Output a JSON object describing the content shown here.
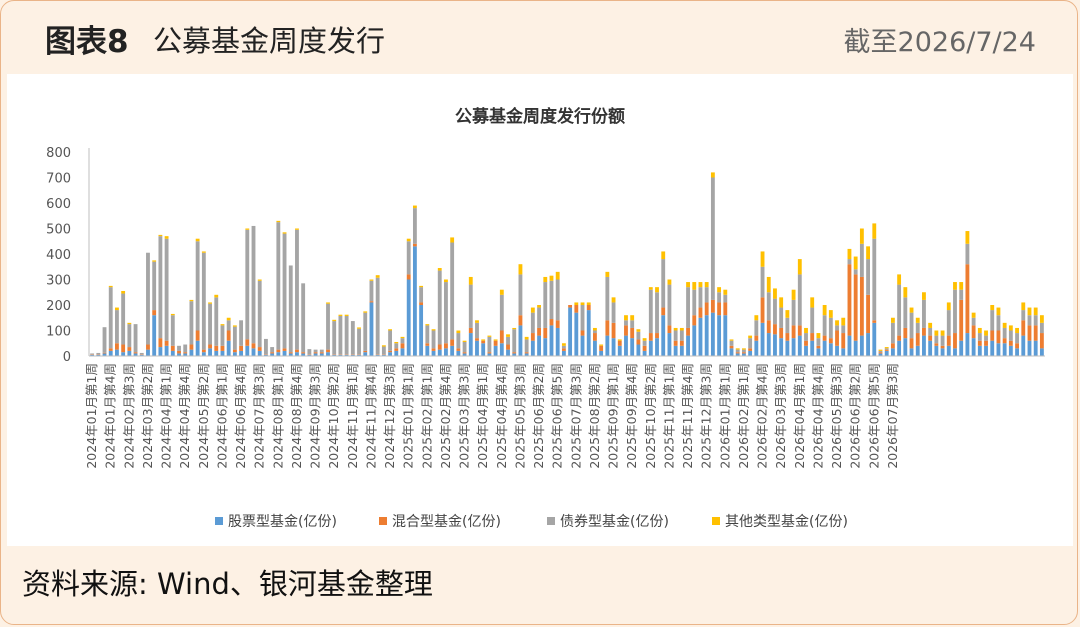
{
  "header": {
    "figure_label": "图表8",
    "figure_title": "公募基金周度发行",
    "date": "截至2026/7/24"
  },
  "source": "资料来源: Wind、银河基金整理",
  "colors": {
    "stock": "#5b9bd5",
    "mixed": "#ed7d31",
    "bond": "#a5a5a5",
    "other": "#ffc000"
  },
  "chart_data": {
    "type": "bar",
    "stacked": true,
    "title": "公募基金周度发行份额",
    "xlabel": "",
    "ylabel": "",
    "ylim": [
      0,
      800
    ],
    "yticks": [
      0,
      100,
      200,
      300,
      400,
      500,
      600,
      700,
      800
    ],
    "grid": false,
    "legend_position": "bottom",
    "x_tick_labels": [
      "2024年01月第1周",
      "2024年01月第4周",
      "2024年02月第3周",
      "2024年03月第2周",
      "2024年04月第1周",
      "2024年04月第4周",
      "2024年05月第2周",
      "2024年06月第1周",
      "2024年06月第4周",
      "2024年07月第3周",
      "2024年08月第1周",
      "2024年08月第4周",
      "2024年09月第3周",
      "2024年10月第2周",
      "2024年11月第1周",
      "2024年11月第4周",
      "2024年12月第3周",
      "2025年01月第1周",
      "2025年02月第1周",
      "2025年02月第4周",
      "2025年03月第3周",
      "2025年04月第1周",
      "2025年04月第4周",
      "2025年05月第3周",
      "2025年06月第2周",
      "2025年06月第5周",
      "2025年07月第3周",
      "2025年08月第2周",
      "2025年09月第1周",
      "2025年09月第4周",
      "2025年10月第2周",
      "2025年11月第1周",
      "2025年11月第4周",
      "2025年12月第3周",
      "2026年01月第1周",
      "2026年02月第1周",
      "2026年02月第4周",
      "2026年03月第3周",
      "2026年04月第1周",
      "2026年04月第4周",
      "2026年05月第3周",
      "2026年06月第2周",
      "2026年06月第5周",
      "2026年07月第3周"
    ],
    "x_tick_every": 3,
    "series": [
      {
        "name": "股票型基金(亿份)",
        "color_key": "stock",
        "values": [
          5,
          5,
          10,
          20,
          25,
          15,
          20,
          10,
          5,
          25,
          160,
          35,
          40,
          20,
          10,
          10,
          25,
          60,
          15,
          30,
          20,
          20,
          60,
          15,
          20,
          40,
          30,
          20,
          5,
          10,
          15,
          20,
          10,
          15,
          10,
          5,
          10,
          10,
          15,
          5,
          5,
          5,
          5,
          5,
          15,
          210,
          5,
          5,
          15,
          20,
          30,
          300,
          430,
          200,
          40,
          20,
          25,
          30,
          40,
          20,
          10,
          90,
          60,
          50,
          10,
          40,
          50,
          25,
          10,
          120,
          10,
          60,
          80,
          70,
          120,
          110,
          20,
          190,
          170,
          80,
          180,
          60,
          20,
          80,
          70,
          40,
          80,
          70,
          45,
          20,
          60,
          70,
          160,
          90,
          40,
          40,
          80,
          120,
          150,
          160,
          170,
          160,
          160,
          30,
          10,
          10,
          20,
          60,
          130,
          90,
          85,
          70,
          60,
          70,
          80,
          40,
          60,
          30,
          60,
          50,
          40,
          30,
          80,
          60,
          80,
          90,
          130,
          10,
          20,
          30,
          60,
          70,
          30,
          40,
          80,
          60,
          40,
          30,
          40,
          30,
          60,
          90,
          70,
          40,
          40,
          60,
          50,
          50,
          40,
          30,
          80,
          60,
          60,
          30
        ]
      },
      {
        "name": "混合型基金(亿份)",
        "color_key": "mixed",
        "values": [
          2,
          2,
          3,
          10,
          25,
          30,
          15,
          5,
          2,
          20,
          20,
          35,
          20,
          20,
          10,
          5,
          20,
          40,
          10,
          15,
          20,
          20,
          40,
          10,
          20,
          25,
          20,
          15,
          2,
          5,
          10,
          10,
          5,
          10,
          5,
          2,
          5,
          5,
          10,
          2,
          2,
          2,
          2,
          2,
          5,
          5,
          2,
          2,
          5,
          10,
          20,
          20,
          10,
          10,
          10,
          10,
          20,
          20,
          25,
          10,
          5,
          20,
          10,
          10,
          5,
          20,
          50,
          20,
          5,
          40,
          5,
          30,
          30,
          40,
          25,
          30,
          10,
          10,
          30,
          20,
          20,
          30,
          20,
          60,
          60,
          20,
          40,
          40,
          20,
          20,
          30,
          20,
          30,
          30,
          20,
          20,
          30,
          40,
          40,
          50,
          50,
          50,
          50,
          10,
          5,
          5,
          10,
          20,
          100,
          50,
          40,
          40,
          30,
          50,
          40,
          20,
          30,
          10,
          20,
          20,
          60,
          60,
          280,
          260,
          230,
          150,
          10,
          5,
          5,
          20,
          20,
          40,
          40,
          50,
          30,
          20,
          10,
          10,
          40,
          60,
          160,
          270,
          50,
          20,
          20,
          40,
          50,
          20,
          20,
          20,
          60,
          60,
          60,
          60
        ]
      },
      {
        "name": "债券型基金(亿份)",
        "color_key": "bond",
        "values": [
          3,
          5,
          100,
          240,
          130,
          200,
          90,
          110,
          5,
          360,
          190,
          400,
          400,
          120,
          20,
          30,
          170,
          350,
          380,
          160,
          190,
          80,
          40,
          90,
          100,
          430,
          460,
          260,
          60,
          20,
          500,
          450,
          340,
          470,
          270,
          20,
          10,
          10,
          180,
          130,
          150,
          150,
          130,
          100,
          150,
          80,
          300,
          30,
          80,
          20,
          20,
          130,
          140,
          60,
          70,
          70,
          290,
          240,
          380,
          60,
          40,
          170,
          60,
          0,
          60,
          0,
          140,
          30,
          90,
          160,
          50,
          80,
          80,
          180,
          150,
          160,
          10,
          0,
          0,
          100,
          0,
          10,
          0,
          170,
          80,
          0,
          20,
          30,
          30,
          20,
          170,
          160,
          190,
          160,
          40,
          40,
          160,
          100,
          80,
          60,
          480,
          40,
          30,
          20,
          10,
          10,
          40,
          60,
          120,
          110,
          100,
          80,
          60,
          100,
          200,
          30,
          100,
          30,
          80,
          80,
          20,
          30,
          20,
          20,
          130,
          140,
          320,
          5,
          5,
          80,
          200,
          120,
          100,
          40,
          110,
          30,
          30,
          40,
          100,
          170,
          40,
          80,
          30,
          30,
          20,
          80,
          60,
          40,
          40,
          40,
          40,
          40,
          40,
          40
        ]
      },
      {
        "name": "其他类型基金(亿份)",
        "color_key": "other",
        "values": [
          0,
          0,
          0,
          5,
          10,
          10,
          5,
          0,
          0,
          0,
          5,
          5,
          10,
          5,
          0,
          0,
          5,
          10,
          5,
          5,
          10,
          5,
          10,
          5,
          0,
          5,
          0,
          5,
          0,
          0,
          5,
          5,
          0,
          5,
          0,
          0,
          0,
          0,
          5,
          5,
          5,
          5,
          0,
          5,
          5,
          5,
          10,
          5,
          5,
          5,
          5,
          10,
          10,
          5,
          5,
          5,
          10,
          10,
          20,
          10,
          5,
          30,
          10,
          5,
          5,
          5,
          20,
          10,
          5,
          40,
          10,
          20,
          10,
          20,
          20,
          30,
          10,
          0,
          10,
          10,
          10,
          10,
          5,
          20,
          20,
          5,
          20,
          20,
          10,
          10,
          10,
          20,
          30,
          20,
          10,
          10,
          20,
          30,
          20,
          20,
          20,
          20,
          20,
          5,
          5,
          5,
          10,
          20,
          60,
          60,
          40,
          40,
          30,
          40,
          60,
          20,
          40,
          20,
          40,
          30,
          20,
          30,
          40,
          50,
          60,
          50,
          60,
          5,
          5,
          20,
          40,
          40,
          20,
          20,
          30,
          20,
          20,
          20,
          30,
          30,
          30,
          50,
          20,
          20,
          20,
          20,
          30,
          20,
          20,
          20,
          30,
          30,
          30,
          30
        ]
      }
    ]
  }
}
